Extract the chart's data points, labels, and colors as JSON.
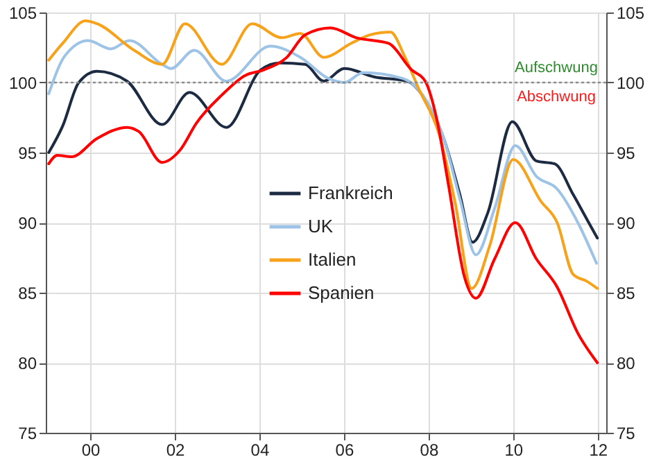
{
  "chart_data": {
    "type": "line",
    "xlim": [
      1998.95,
      2012.2
    ],
    "xticks": [
      {
        "value": 2000,
        "label": "00"
      },
      {
        "value": 2002,
        "label": "02"
      },
      {
        "value": 2004,
        "label": "04"
      },
      {
        "value": 2006,
        "label": "06"
      },
      {
        "value": 2008,
        "label": "08"
      },
      {
        "value": 2010,
        "label": "10"
      },
      {
        "value": 2012,
        "label": "12"
      }
    ],
    "ylim": [
      75,
      105
    ],
    "yticks": [
      75,
      80,
      85,
      90,
      95,
      100,
      105
    ],
    "y2lim": [
      75,
      105
    ],
    "y2ticks": [
      75,
      80,
      85,
      90,
      95,
      100,
      105
    ],
    "grid": true,
    "legend": "center",
    "line_style": "solid",
    "marker": "none",
    "ref_lines": [
      {
        "axis": "y",
        "value": 100,
        "color": "#8c8c8c",
        "line_style": "dotted"
      }
    ],
    "annotations": [
      "Aufschwung",
      "Abschwung"
    ],
    "series": [
      {
        "name": "Frankreich",
        "color": "#1c2a42",
        "x": [
          1999.02,
          1999.35,
          1999.73,
          2000.16,
          2000.87,
          2001.7,
          2002.35,
          2003.22,
          2004.03,
          2004.48,
          2005.08,
          2005.52,
          2006.01,
          2006.72,
          2007.49,
          2007.92,
          2008.36,
          2008.74,
          2009.04,
          2009.4,
          2009.98,
          2010.55,
          2010.98,
          2011.42,
          2011.75,
          2011.99
        ],
        "values": [
          95.0,
          96.9,
          100.0,
          100.8,
          100.1,
          97.0,
          99.3,
          96.8,
          100.9,
          101.4,
          101.3,
          100.1,
          101.0,
          100.4,
          100.1,
          98.8,
          96.0,
          92.0,
          88.6,
          90.7,
          97.2,
          94.4,
          94.2,
          92.0,
          90.2,
          88.9
        ]
      },
      {
        "name": "UK",
        "color": "#9dc3e6",
        "x": [
          1999.02,
          1999.4,
          1999.95,
          2000.49,
          2000.93,
          2001.7,
          2001.91,
          2002.46,
          2003.22,
          2004.26,
          2004.97,
          2005.63,
          2006.01,
          2006.45,
          2007.38,
          2007.81,
          2008.36,
          2008.74,
          2009.12,
          2009.56,
          2010.05,
          2010.55,
          2011.04,
          2011.53,
          2011.97
        ],
        "values": [
          99.2,
          101.9,
          103.0,
          102.4,
          103.0,
          101.3,
          101.0,
          102.3,
          100.1,
          102.6,
          101.8,
          100.3,
          100.0,
          100.7,
          100.3,
          99.3,
          96.0,
          91.7,
          87.7,
          91.0,
          95.5,
          93.3,
          92.4,
          90.0,
          87.1
        ]
      },
      {
        "name": "Italien",
        "color": "#f7a21b",
        "x": [
          1999.02,
          1999.35,
          1999.89,
          2000.16,
          2001.04,
          2001.7,
          2002.24,
          2003.11,
          2003.83,
          2004.53,
          2004.97,
          2005.52,
          2006.17,
          2006.61,
          2007.1,
          2007.43,
          2007.76,
          2008.25,
          2008.63,
          2009.02,
          2009.45,
          2010.0,
          2010.66,
          2011.04,
          2011.42,
          2011.75,
          2011.99
        ],
        "values": [
          101.6,
          102.8,
          104.4,
          104.2,
          102.3,
          101.3,
          104.2,
          101.3,
          104.2,
          103.2,
          103.5,
          101.8,
          102.8,
          103.4,
          103.6,
          101.9,
          99.6,
          96.3,
          91.4,
          85.3,
          88.4,
          94.5,
          91.5,
          90.0,
          86.3,
          85.8,
          85.3
        ]
      },
      {
        "name": "Spanien",
        "color": "#ff0000",
        "x": [
          1999.02,
          1999.22,
          1999.56,
          2000.16,
          2000.87,
          2001.15,
          2001.7,
          2002.13,
          2002.51,
          2003.11,
          2003.66,
          2004.1,
          2004.65,
          2005.08,
          2005.68,
          2006.29,
          2007.05,
          2007.6,
          2007.92,
          2008.2,
          2008.47,
          2008.85,
          2009.12,
          2009.56,
          2010.05,
          2010.55,
          2011.04,
          2011.53,
          2011.99
        ],
        "values": [
          94.2,
          94.8,
          94.7,
          96.0,
          96.8,
          96.5,
          94.3,
          95.2,
          97.1,
          99.1,
          100.5,
          100.9,
          101.8,
          103.4,
          103.9,
          103.2,
          102.8,
          100.9,
          100.1,
          97.3,
          92.7,
          86.1,
          84.6,
          87.4,
          90.0,
          87.4,
          85.4,
          82.1,
          80.0
        ]
      }
    ]
  }
}
